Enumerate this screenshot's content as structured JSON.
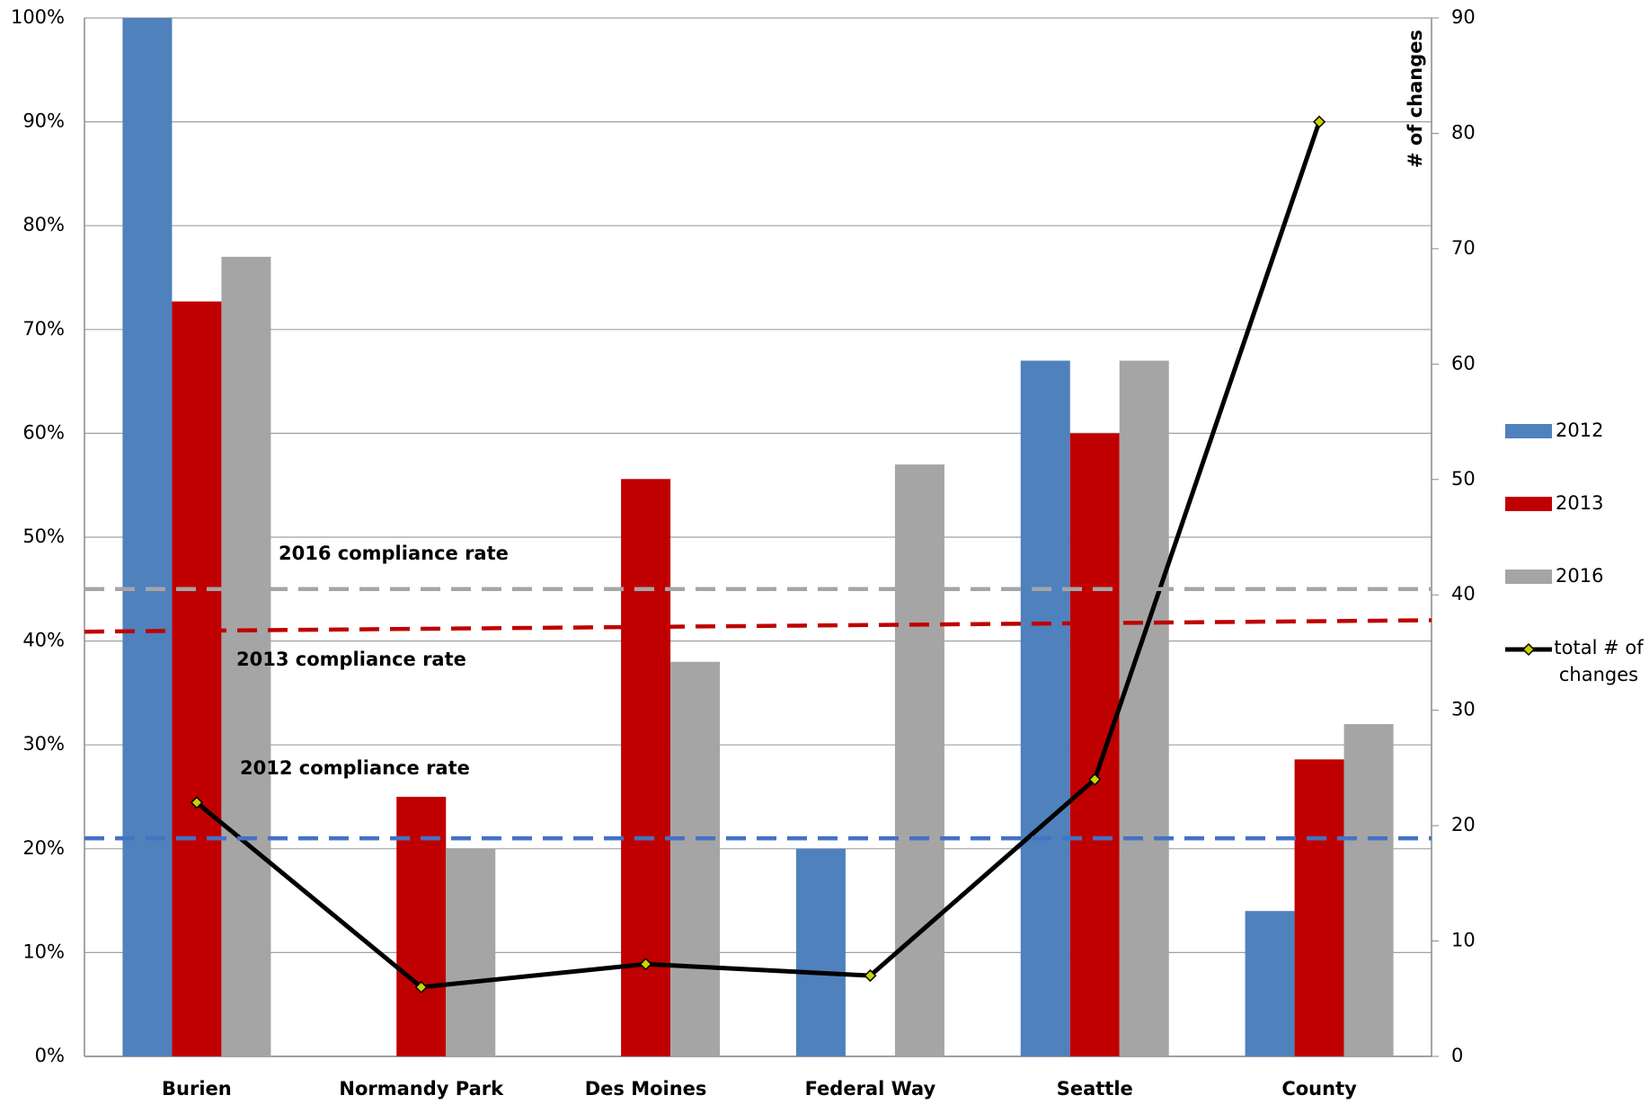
{
  "chart_data": {
    "type": "bar",
    "categories": [
      "Burien",
      "Normandy Park",
      "Des Moines",
      "Federal Way",
      "Seattle",
      "County"
    ],
    "series": [
      {
        "name": "2012",
        "color": "#4f81bd",
        "values": [
          100,
          null,
          null,
          20,
          67,
          14
        ]
      },
      {
        "name": "2013",
        "color": "#c00000",
        "values": [
          72.7,
          25,
          55.6,
          null,
          60,
          28.6
        ]
      },
      {
        "name": "2016",
        "color": "#a5a5a5",
        "values": [
          77,
          20,
          38,
          57,
          67,
          32
        ]
      },
      {
        "name": "total # of changes",
        "type": "line",
        "axis": "y2",
        "color": "#000000",
        "marker_color": "#c8d400",
        "values": [
          22,
          6,
          8,
          7,
          24,
          81
        ]
      }
    ],
    "reference_lines": [
      {
        "name": "2016 compliance rate",
        "color": "#a5a5a5",
        "values": [
          45,
          45
        ]
      },
      {
        "name": "2013 compliance rate",
        "color": "#c00000",
        "values": [
          40.9,
          42
        ]
      },
      {
        "name": "2012 compliance rate",
        "color": "#4472c4",
        "values": [
          21,
          21
        ]
      }
    ],
    "y2label": "# of changes",
    "ylim": [
      0,
      100
    ],
    "yticks": [
      {
        "value": 0,
        "label": "0%"
      },
      {
        "value": 10,
        "label": "10%"
      },
      {
        "value": 20,
        "label": "20%"
      },
      {
        "value": 30,
        "label": "30%"
      },
      {
        "value": 40,
        "label": "40%"
      },
      {
        "value": 50,
        "label": "50%"
      },
      {
        "value": 60,
        "label": "60%"
      },
      {
        "value": 70,
        "label": "70%"
      },
      {
        "value": 80,
        "label": "80%"
      },
      {
        "value": 90,
        "label": "90%"
      },
      {
        "value": 100,
        "label": "100%"
      }
    ],
    "y2lim": [
      0,
      90
    ],
    "y2ticks": [
      0,
      10,
      20,
      30,
      40,
      50,
      60,
      70,
      80,
      90
    ],
    "grid": true,
    "legend": "right"
  }
}
